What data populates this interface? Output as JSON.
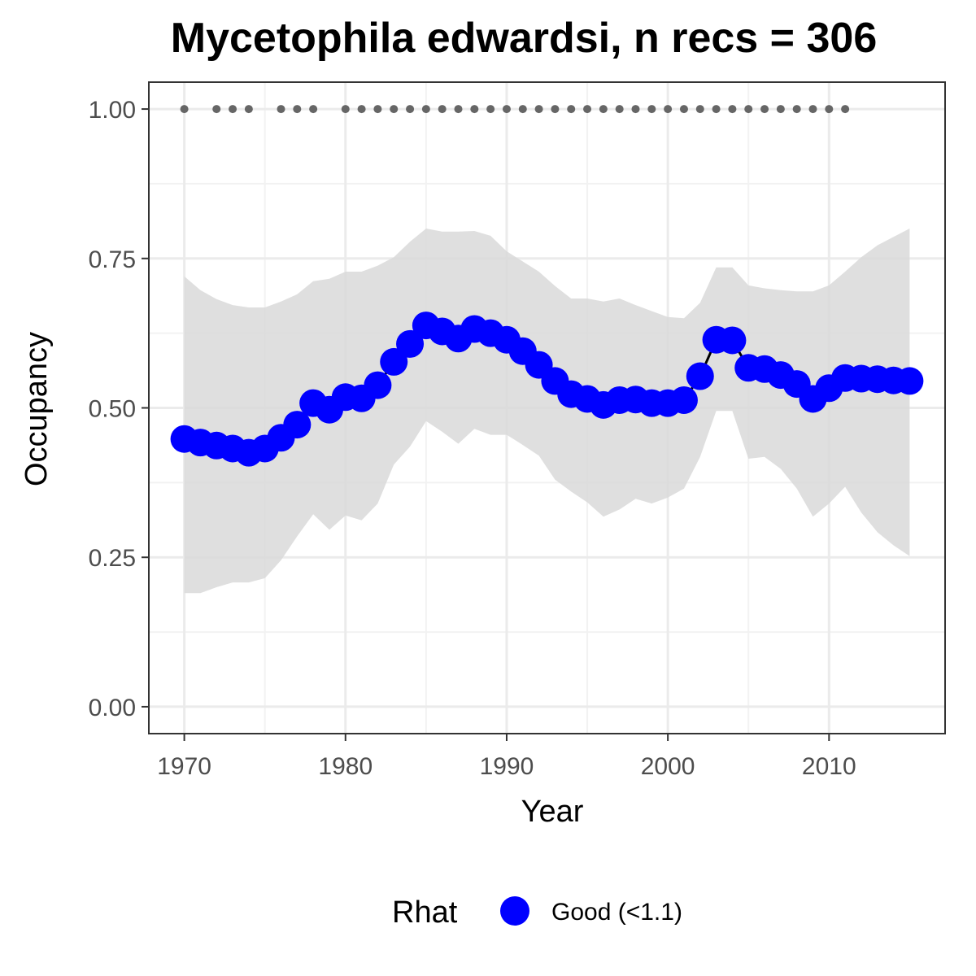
{
  "chart_data": {
    "type": "line",
    "title": "Mycetophila edwardsi, n recs = 306",
    "xlabel": "Year",
    "ylabel": "Occupancy",
    "xlim": [
      1967.8,
      2017.2
    ],
    "ylim": [
      -0.045,
      1.045
    ],
    "x_ticks": [
      1970,
      1980,
      1990,
      2000,
      2010
    ],
    "x_tick_labels": [
      "1970",
      "1980",
      "1990",
      "2000",
      "2010"
    ],
    "y_ticks": [
      0,
      0.25,
      0.5,
      0.75,
      1.0
    ],
    "y_tick_labels": [
      "0.00",
      "0.25",
      "0.50",
      "0.75",
      "1.00"
    ],
    "grid": true,
    "legend_position": "bottom",
    "legend": {
      "title": "Rhat",
      "entries": [
        {
          "label": "Good (<1.1)",
          "color": "#0000ff"
        }
      ]
    },
    "colors": {
      "series": "#0000ff",
      "line": "#000000",
      "ribbon": "#d9d9d9",
      "record_points": "#666666",
      "panel_border": "#333333",
      "grid_major": "#ebebeb",
      "grid_minor": "#f2f2f2"
    },
    "series": [
      {
        "name": "Good (<1.1)",
        "x": [
          1970,
          1971,
          1972,
          1973,
          1974,
          1975,
          1976,
          1977,
          1978,
          1979,
          1980,
          1981,
          1982,
          1983,
          1984,
          1985,
          1986,
          1987,
          1988,
          1989,
          1990,
          1991,
          1992,
          1993,
          1994,
          1995,
          1996,
          1997,
          1998,
          1999,
          2000,
          2001,
          2002,
          2003,
          2004,
          2005,
          2006,
          2007,
          2008,
          2009,
          2010,
          2011,
          2012,
          2013,
          2014,
          2015
        ],
        "y": [
          0.448,
          0.442,
          0.437,
          0.432,
          0.425,
          0.432,
          0.45,
          0.472,
          0.508,
          0.497,
          0.518,
          0.516,
          0.538,
          0.577,
          0.607,
          0.638,
          0.628,
          0.616,
          0.632,
          0.625,
          0.614,
          0.595,
          0.572,
          0.545,
          0.523,
          0.515,
          0.505,
          0.513,
          0.514,
          0.508,
          0.508,
          0.513,
          0.553,
          0.614,
          0.613,
          0.567,
          0.565,
          0.555,
          0.54,
          0.515,
          0.533,
          0.55,
          0.549,
          0.548,
          0.546,
          0.545
        ],
        "lower": [
          0.19,
          0.19,
          0.2,
          0.208,
          0.208,
          0.215,
          0.245,
          0.285,
          0.322,
          0.296,
          0.32,
          0.312,
          0.34,
          0.405,
          0.435,
          0.478,
          0.46,
          0.44,
          0.465,
          0.455,
          0.455,
          0.438,
          0.42,
          0.38,
          0.36,
          0.342,
          0.318,
          0.33,
          0.348,
          0.34,
          0.35,
          0.365,
          0.418,
          0.495,
          0.495,
          0.415,
          0.418,
          0.398,
          0.365,
          0.318,
          0.34,
          0.368,
          0.325,
          0.292,
          0.27,
          0.252
        ],
        "upper": [
          0.72,
          0.697,
          0.682,
          0.672,
          0.668,
          0.668,
          0.678,
          0.69,
          0.712,
          0.716,
          0.728,
          0.728,
          0.738,
          0.752,
          0.778,
          0.8,
          0.795,
          0.795,
          0.796,
          0.788,
          0.762,
          0.745,
          0.728,
          0.704,
          0.683,
          0.683,
          0.678,
          0.683,
          0.672,
          0.662,
          0.652,
          0.65,
          0.676,
          0.735,
          0.735,
          0.705,
          0.7,
          0.697,
          0.695,
          0.695,
          0.705,
          0.728,
          0.752,
          0.772,
          0.786,
          0.8
        ]
      }
    ],
    "record_years": [
      1970,
      1972,
      1973,
      1974,
      1976,
      1977,
      1978,
      1980,
      1981,
      1982,
      1983,
      1984,
      1985,
      1986,
      1987,
      1988,
      1989,
      1990,
      1991,
      1992,
      1993,
      1994,
      1995,
      1996,
      1997,
      1998,
      1999,
      2000,
      2001,
      2002,
      2003,
      2004,
      2005,
      2006,
      2007,
      2008,
      2009,
      2010,
      2011
    ],
    "record_value": 1.0
  }
}
